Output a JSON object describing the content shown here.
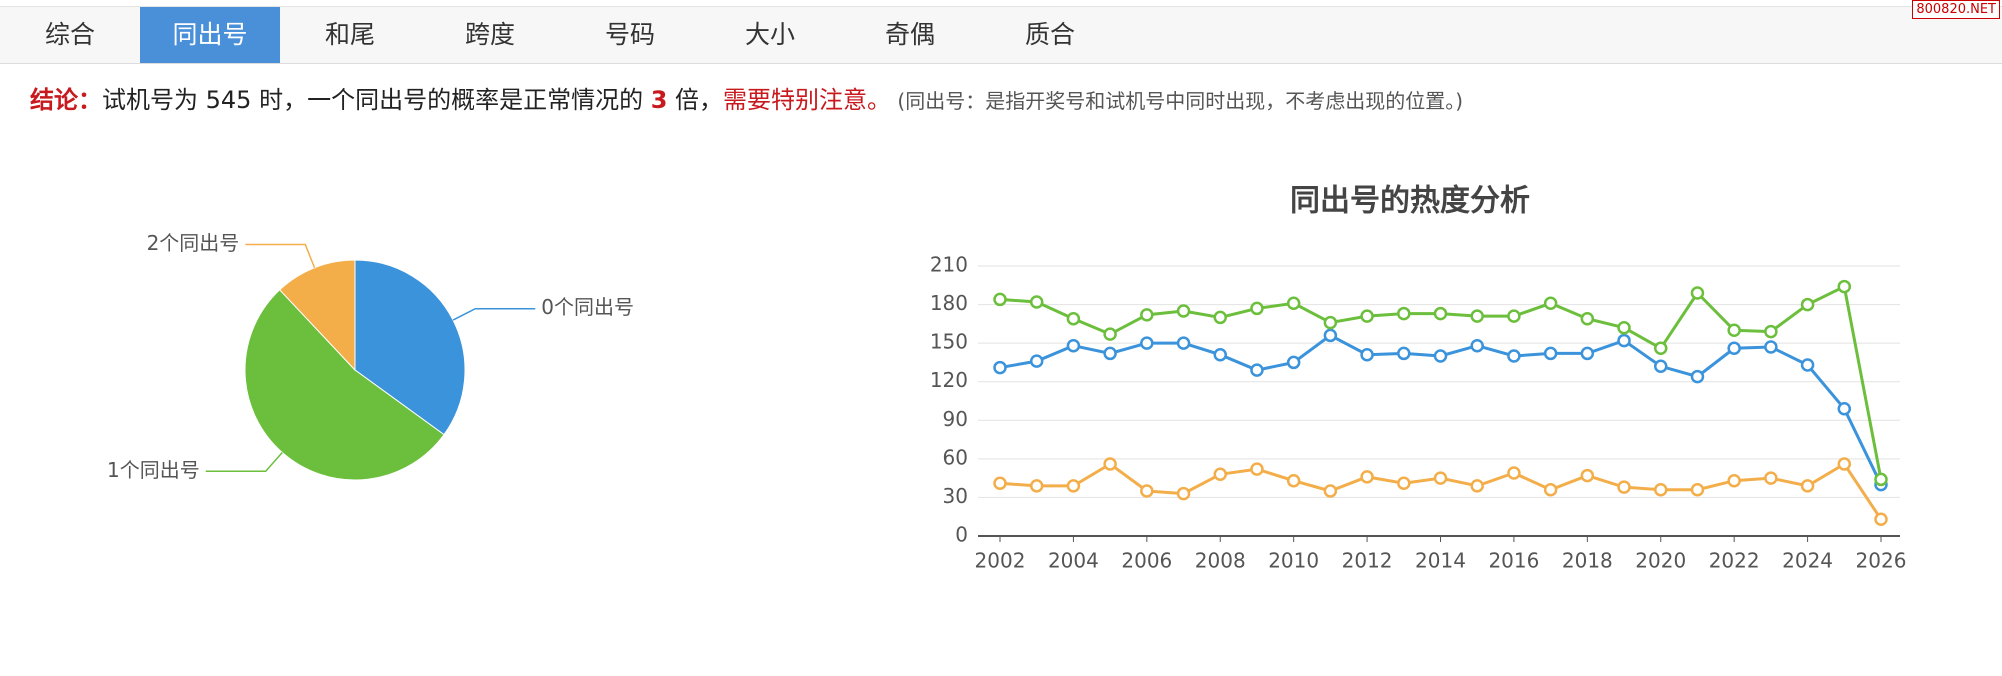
{
  "tabs": [
    "综合",
    "同出号",
    "和尾",
    "跨度",
    "号码",
    "大小",
    "奇偶",
    "质合"
  ],
  "watermark": "800820.NET",
  "conclusion": {
    "label": "结论：",
    "text1": "试机号为 545 时，一个同出号的概率是正常情况的 ",
    "number": "3",
    "text2": " 倍，",
    "warning": "需要特别注意。",
    "note": "(同出号：是指开奖号和试机号中同时出现，不考虑出现的位置。)"
  },
  "chart_data": [
    {
      "type": "pie",
      "categories": [
        "0个同出号",
        "1个同出号",
        "2个同出号"
      ],
      "values": [
        35,
        53,
        12
      ],
      "colors": [
        "#3a93db",
        "#6cbf3c",
        "#f3ae4a"
      ]
    },
    {
      "type": "line",
      "title": "同出号的热度分析",
      "x": [
        2002,
        2003,
        2004,
        2005,
        2006,
        2007,
        2008,
        2009,
        2010,
        2011,
        2012,
        2013,
        2014,
        2015,
        2016,
        2017,
        2018,
        2019,
        2020,
        2021,
        2022,
        2023,
        2024,
        2025,
        2026
      ],
      "series": [
        {
          "color": "#3a93db",
          "values": [
            131,
            136,
            148,
            142,
            150,
            150,
            141,
            129,
            135,
            156,
            141,
            142,
            140,
            148,
            140,
            142,
            142,
            152,
            132,
            124,
            146,
            147,
            133,
            99,
            40
          ]
        },
        {
          "color": "#6cbf3c",
          "values": [
            184,
            182,
            169,
            157,
            172,
            175,
            170,
            177,
            181,
            166,
            171,
            173,
            173,
            171,
            171,
            181,
            169,
            162,
            146,
            189,
            160,
            159,
            180,
            194,
            44
          ]
        },
        {
          "color": "#f3ae4a",
          "values": [
            41,
            39,
            39,
            56,
            35,
            33,
            48,
            52,
            43,
            35,
            46,
            41,
            45,
            39,
            49,
            36,
            47,
            38,
            36,
            36,
            43,
            45,
            39,
            56,
            13
          ]
        }
      ],
      "xlim": [
        2002,
        2026
      ],
      "xticks": [
        2002,
        2004,
        2006,
        2008,
        2010,
        2012,
        2014,
        2016,
        2018,
        2020,
        2022,
        2024,
        2026
      ],
      "ylim": [
        0,
        210
      ],
      "yticks": [
        0,
        30,
        60,
        90,
        120,
        150,
        180,
        210
      ],
      "grid": true
    }
  ]
}
